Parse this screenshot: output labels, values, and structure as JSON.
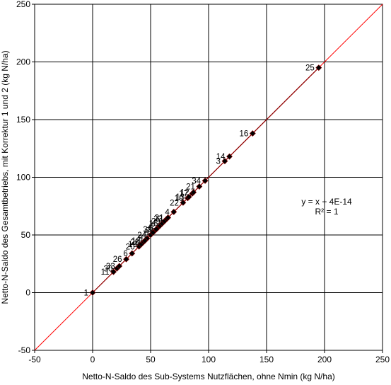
{
  "chart_data": {
    "type": "scatter",
    "title": "",
    "xlabel": "Netto-N-Saldo des Sub-Systems Nutzflächen, ohne Nmin (kg N/ha)",
    "ylabel": "Netto-N-Saldo des Gesamtbetriebs, mit Korrektur 1 und 2 (kg N/ha)",
    "xlim": [
      -50,
      250
    ],
    "ylim": [
      -50,
      250
    ],
    "xticks": [
      "-50",
      "0",
      "50",
      "100",
      "150",
      "200",
      "250"
    ],
    "yticks": [
      "-50",
      "0",
      "50",
      "100",
      "150",
      "200",
      "250"
    ],
    "grid": true,
    "legend": "none",
    "colors": {
      "points": "#000000",
      "point_outline": "#8b0000",
      "identity_line": "#ff0000",
      "trendline": "#8b0000"
    },
    "annotations": {
      "equation": "y = x + 4E-14",
      "r2": "R² = 1"
    },
    "points": [
      {
        "label": "1",
        "x": 0,
        "y": 0
      },
      {
        "label": "11",
        "x": 18,
        "y": 18
      },
      {
        "label": "30",
        "x": 21,
        "y": 21
      },
      {
        "label": "33",
        "x": 23,
        "y": 23
      },
      {
        "label": "26",
        "x": 29,
        "y": 29
      },
      {
        "label": "6",
        "x": 34,
        "y": 34
      },
      {
        "label": "20",
        "x": 40,
        "y": 40
      },
      {
        "label": "9",
        "x": 47,
        "y": 47
      },
      {
        "label": "24",
        "x": 50,
        "y": 50
      },
      {
        "label": "19",
        "x": 42,
        "y": 42
      },
      {
        "label": "28",
        "x": 44,
        "y": 44
      },
      {
        "label": "18",
        "x": 45,
        "y": 45
      },
      {
        "label": "5",
        "x": 56,
        "y": 56
      },
      {
        "label": "7",
        "x": 54,
        "y": 54
      },
      {
        "label": "8",
        "x": 52,
        "y": 52
      },
      {
        "label": "2",
        "x": 58,
        "y": 58
      },
      {
        "label": "35",
        "x": 55,
        "y": 55
      },
      {
        "label": "15",
        "x": 60,
        "y": 60
      },
      {
        "label": "29",
        "x": 62,
        "y": 62
      },
      {
        "label": "23",
        "x": 64,
        "y": 64
      },
      {
        "label": "31",
        "x": 65,
        "y": 65
      },
      {
        "label": "4",
        "x": 70,
        "y": 70
      },
      {
        "label": "22",
        "x": 78,
        "y": 78
      },
      {
        "label": "10",
        "x": 82,
        "y": 82
      },
      {
        "label": "13",
        "x": 83,
        "y": 83
      },
      {
        "label": "17",
        "x": 86,
        "y": 86
      },
      {
        "label": "12",
        "x": 87,
        "y": 87
      },
      {
        "label": "21",
        "x": 92,
        "y": 92
      },
      {
        "label": "34",
        "x": 97,
        "y": 97
      },
      {
        "label": "3",
        "x": 114,
        "y": 114
      },
      {
        "label": "14",
        "x": 118,
        "y": 118
      },
      {
        "label": "16",
        "x": 138,
        "y": 138
      },
      {
        "label": "25",
        "x": 195,
        "y": 195
      }
    ]
  }
}
